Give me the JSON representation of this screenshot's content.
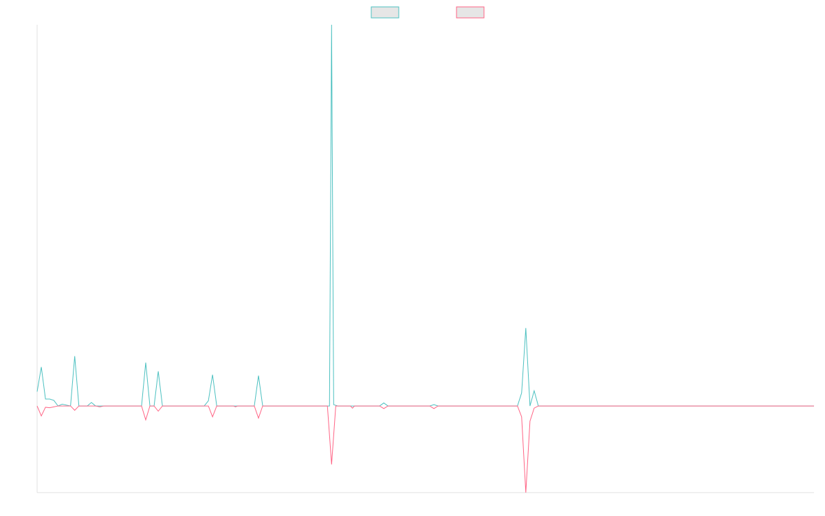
{
  "chart_data": {
    "type": "line",
    "title": "",
    "xlabel": "",
    "ylabel": "",
    "grid": false,
    "legend_position": "top-center",
    "legend_labels_visible": false,
    "xlim": [
      0,
      186
    ],
    "ylim": [
      -20,
      88
    ],
    "baseline": 0,
    "series": [
      {
        "color": "#4bc0c0",
        "legend_fill": "#e6e6e6",
        "points": [
          [
            0,
            3.3
          ],
          [
            1,
            9
          ],
          [
            2,
            1.6
          ],
          [
            3,
            1.6
          ],
          [
            4,
            1.3
          ],
          [
            5,
            0
          ],
          [
            6,
            0.4
          ],
          [
            8,
            0
          ],
          [
            9,
            11.5
          ],
          [
            10,
            0
          ],
          [
            12,
            0
          ],
          [
            13,
            0.8
          ],
          [
            14,
            0
          ],
          [
            25,
            0
          ],
          [
            26,
            10
          ],
          [
            27,
            0
          ],
          [
            28,
            0
          ],
          [
            29,
            8
          ],
          [
            30,
            0
          ],
          [
            40,
            0
          ],
          [
            41,
            1.2
          ],
          [
            42,
            7.2
          ],
          [
            43,
            0
          ],
          [
            52,
            0
          ],
          [
            53,
            7
          ],
          [
            54,
            0
          ],
          [
            70,
            0
          ],
          [
            70.5,
            88
          ],
          [
            71,
            0.3
          ],
          [
            72,
            0
          ],
          [
            82,
            0
          ],
          [
            83,
            0.7
          ],
          [
            84,
            0
          ],
          [
            94,
            0
          ],
          [
            95,
            0.3
          ],
          [
            96,
            0
          ],
          [
            115,
            0
          ],
          [
            116,
            3
          ],
          [
            117,
            18
          ],
          [
            118,
            0
          ],
          [
            119,
            3.5
          ],
          [
            120,
            0
          ],
          [
            186,
            0
          ]
        ]
      },
      {
        "color": "#ff6384",
        "legend_fill": "#e6e6e6",
        "points": [
          [
            0,
            0
          ],
          [
            1,
            -2.3
          ],
          [
            2,
            -0.3
          ],
          [
            3,
            -0.4
          ],
          [
            4,
            -0.2
          ],
          [
            5,
            0
          ],
          [
            8,
            0
          ],
          [
            9,
            -1
          ],
          [
            10,
            0
          ],
          [
            14,
            0
          ],
          [
            15,
            -0.2
          ],
          [
            16,
            0
          ],
          [
            25,
            0
          ],
          [
            26,
            -3.2
          ],
          [
            27,
            0
          ],
          [
            28,
            0
          ],
          [
            29,
            -1.2
          ],
          [
            30,
            0
          ],
          [
            41,
            0
          ],
          [
            42,
            -2.5
          ],
          [
            43,
            0
          ],
          [
            47,
            0
          ],
          [
            47.5,
            -0.2
          ],
          [
            48,
            0
          ],
          [
            52,
            0
          ],
          [
            53,
            -2.8
          ],
          [
            54,
            0
          ],
          [
            69.5,
            0
          ],
          [
            70.5,
            -13.5
          ],
          [
            71.5,
            0
          ],
          [
            75,
            0
          ],
          [
            75.5,
            -0.5
          ],
          [
            76,
            0
          ],
          [
            82,
            0
          ],
          [
            83,
            -0.6
          ],
          [
            84,
            0
          ],
          [
            94,
            0
          ],
          [
            95,
            -0.6
          ],
          [
            96,
            0
          ],
          [
            115,
            0
          ],
          [
            116,
            -2.5
          ],
          [
            117,
            -20
          ],
          [
            118,
            -3.5
          ],
          [
            119,
            -0.5
          ],
          [
            120,
            0
          ],
          [
            186,
            0
          ]
        ]
      }
    ]
  }
}
